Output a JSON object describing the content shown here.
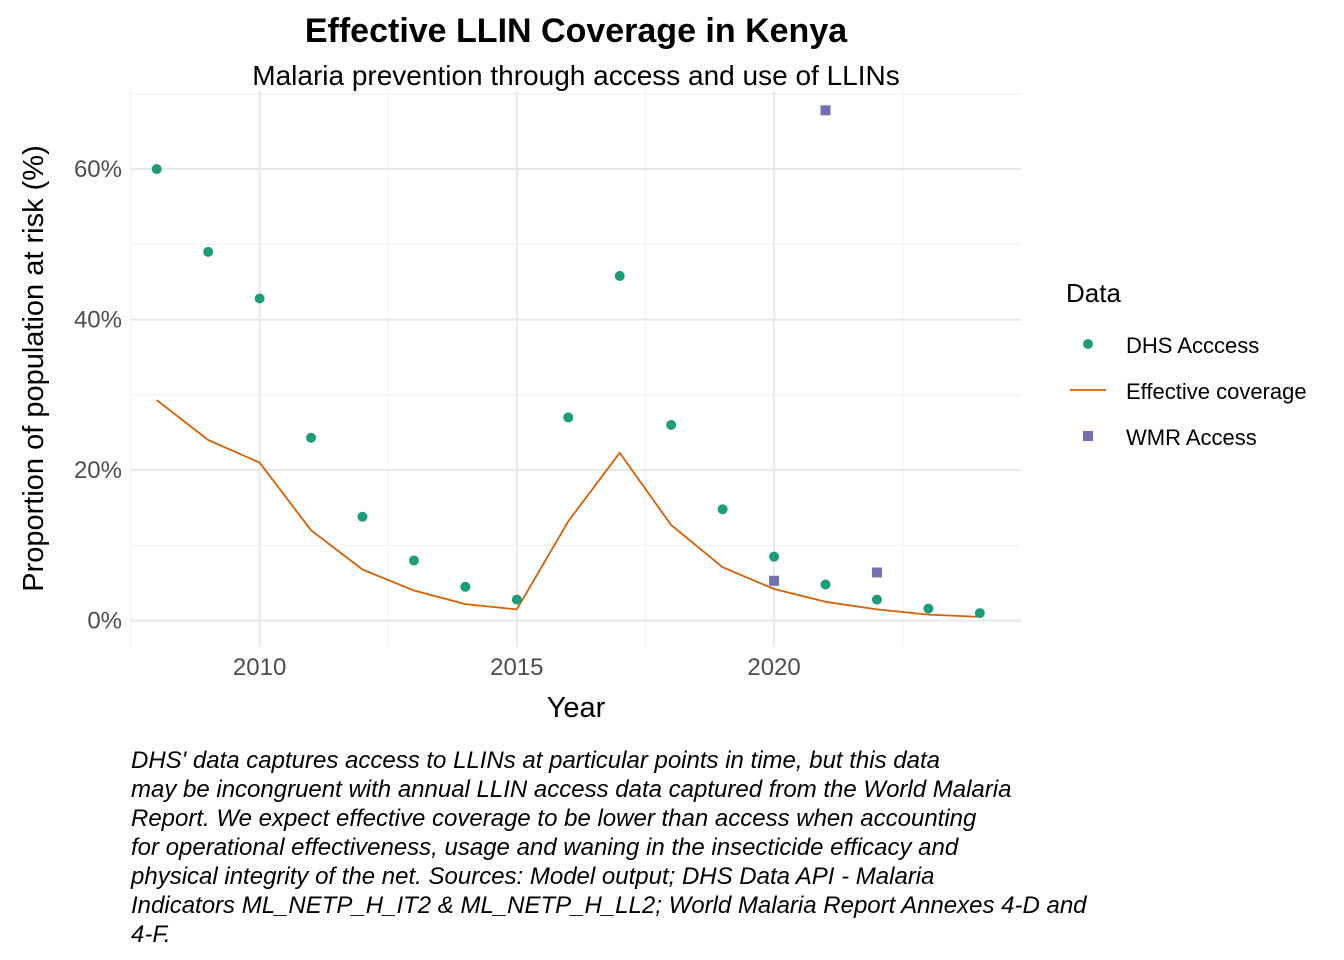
{
  "chart_data": {
    "type": "scatter",
    "title": "Effective LLIN Coverage in Kenya",
    "subtitle": "Malaria prevention through access and use of LLINs",
    "xlabel": "Year",
    "ylabel": "Proportion of population at risk (%)",
    "xlim": [
      2007.5,
      2024.8
    ],
    "ylim": [
      -3.5,
      70.5
    ],
    "x_ticks": [
      2010,
      2015,
      2020
    ],
    "x_tick_labels": [
      "2010",
      "2015",
      "2020"
    ],
    "y_ticks": [
      0,
      20,
      40,
      60
    ],
    "y_tick_labels": [
      "0%",
      "20%",
      "40%",
      "60%"
    ],
    "grid": true,
    "legend": {
      "title": "Data",
      "position": "right",
      "entries": [
        "DHS Acccess",
        "Effective coverage",
        "WMR Access"
      ]
    },
    "series": [
      {
        "name": "DHS Acccess",
        "kind": "points",
        "marker": "circle",
        "color": "#1b9e77",
        "x": [
          2008,
          2009,
          2010,
          2011,
          2012,
          2013,
          2014,
          2015,
          2016,
          2017,
          2018,
          2019,
          2020,
          2021,
          2022,
          2023,
          2024
        ],
        "y": [
          60.0,
          49.0,
          42.8,
          24.3,
          13.8,
          8.0,
          4.5,
          2.8,
          27.0,
          45.8,
          26.0,
          14.8,
          8.5,
          4.8,
          2.8,
          1.6,
          1.0
        ]
      },
      {
        "name": "Effective coverage",
        "kind": "line",
        "color": "#d95f02",
        "x": [
          2008,
          2009,
          2010,
          2011,
          2012,
          2013,
          2014,
          2015,
          2016,
          2017,
          2018,
          2019,
          2020,
          2021,
          2022,
          2023,
          2024
        ],
        "y": [
          29.3,
          24.0,
          21.0,
          12.0,
          6.8,
          4.0,
          2.2,
          1.5,
          13.2,
          22.3,
          12.7,
          7.1,
          4.2,
          2.5,
          1.5,
          0.8,
          0.5
        ]
      },
      {
        "name": "WMR Access",
        "kind": "points",
        "marker": "square",
        "color": "#7570b3",
        "x": [
          2020,
          2021,
          2022
        ],
        "y": [
          5.3,
          67.8,
          6.4
        ]
      }
    ]
  },
  "caption": [
    "DHS' data captures access to LLINs at particular points in time, but this data",
    "may be incongruent with annual LLIN access data captured from the World Malaria",
    "Report. We expect effective coverage to be lower than access when accounting",
    "for operational effectiveness, usage and waning in the insecticide efficacy and",
    "physical integrity of the net. Sources: Model output; DHS Data API - Malaria",
    "Indicators ML_NETP_H_IT2 & ML_NETP_H_LL2; World Malaria Report Annexes 4-D and",
    "4-F."
  ]
}
